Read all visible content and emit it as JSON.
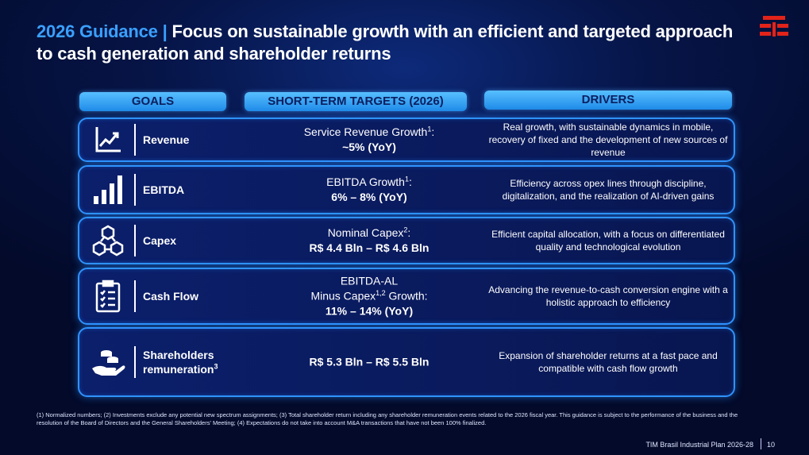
{
  "header": {
    "title_accent": "2026 Guidance |",
    "title_main": "Focus on sustainable growth with an efficient and targeted approach to cash generation and shareholder returns"
  },
  "columns": {
    "goals": "GOALS",
    "targets": "SHORT-TERM TARGETS (2026)",
    "drivers": "DRIVERS"
  },
  "rows": [
    {
      "goal": "Revenue",
      "target_l1": "Service Revenue Growth",
      "target_l1_sup": "1",
      "target_l1_end": ":",
      "target_l2": "~5% (YoY)",
      "driver": "Real growth, with sustainable dynamics in mobile, recovery of fixed and the development of new sources of revenue",
      "icon": "growth-chart-icon"
    },
    {
      "goal": "EBITDA",
      "target_l1": "EBITDA Growth",
      "target_l1_sup": "1",
      "target_l1_end": ":",
      "target_l2": "6% – 8% (YoY)",
      "driver": "Efficiency across opex lines through discipline, digitalization, and the realization of AI-driven gains",
      "icon": "bar-chart-icon"
    },
    {
      "goal": "Capex",
      "target_l1": "Nominal Capex",
      "target_l1_sup": "2",
      "target_l1_end": ":",
      "target_l2": "R$ 4.4 Bln – R$ 4.6 Bln",
      "driver": "Efficient capital allocation, with a focus on differentiated quality and technological evolution",
      "icon": "network-blocks-icon"
    },
    {
      "goal": "Cash Flow",
      "target_l0": "EBITDA-AL",
      "target_l1": "Minus Capex",
      "target_l1_sup": "1,2",
      "target_l1_end": " Growth:",
      "target_l2": "11% – 14% (YoY)",
      "driver": "Advancing the revenue-to-cash conversion engine with a holistic approach to efficiency",
      "icon": "clipboard-checklist-icon"
    },
    {
      "goal_l1": "Shareholders",
      "goal_l2": "remuneration",
      "goal_sup": "3",
      "target_l2": "R$ 5.3 Bln – R$ 5.5 Bln",
      "driver": "Expansion of shareholder returns at a fast pace and compatible with cash flow growth",
      "icon": "hand-coins-icon"
    }
  ],
  "footnote": "(1) Normalized numbers; (2) Investments exclude any potential new spectrum assignments; (3) Total shareholder return including any shareholder remuneration events related to the 2026 fiscal year. This guidance is subject to the performance of the business and the resolution of the Board of Directors and the General Shareholders' Meeting; (4) Expectations do not take into account M&A transactions that have not been 100% finalized.",
  "footer": {
    "doc_name": "TIM Brasil Industrial Plan 2026-28",
    "page": "10"
  },
  "colors": {
    "accent": "#3aa0ff",
    "logo": "#e2231a",
    "border": "#2f93ff"
  }
}
